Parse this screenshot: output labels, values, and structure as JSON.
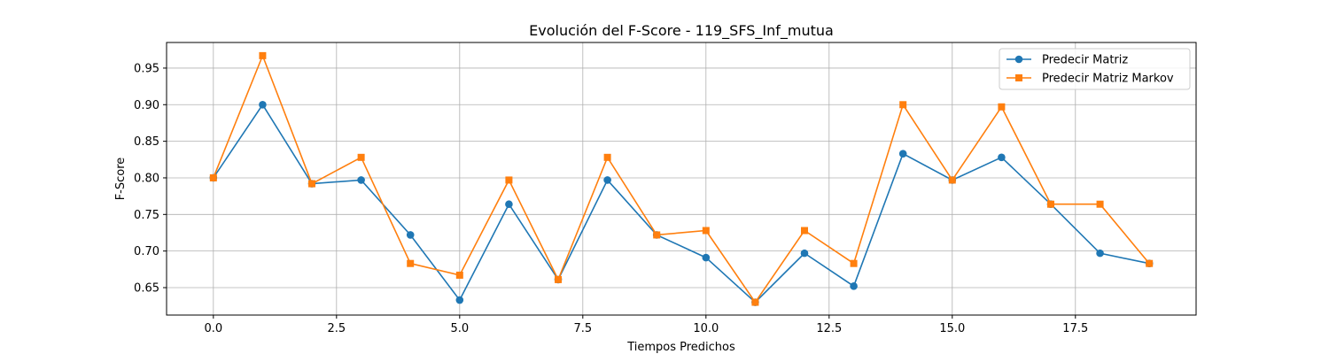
{
  "chart_data": {
    "type": "line",
    "title": "Evolución del F-Score - 119_SFS_Inf_mutua",
    "xlabel": "Tiempos Predichos",
    "ylabel": "F-Score",
    "xlim": [
      -0.95,
      19.95
    ],
    "ylim": [
      0.6125,
      0.985
    ],
    "xticks": [
      0.0,
      2.5,
      5.0,
      7.5,
      10.0,
      12.5,
      15.0,
      17.5
    ],
    "xtick_labels": [
      "0.0",
      "2.5",
      "5.0",
      "7.5",
      "10.0",
      "12.5",
      "15.0",
      "17.5"
    ],
    "yticks": [
      0.65,
      0.7,
      0.75,
      0.8,
      0.85,
      0.9,
      0.95
    ],
    "ytick_labels": [
      "0.65",
      "0.70",
      "0.75",
      "0.80",
      "0.85",
      "0.90",
      "0.95"
    ],
    "grid": true,
    "legend_position": "top-right",
    "x": [
      0,
      1,
      2,
      3,
      4,
      5,
      6,
      7,
      8,
      9,
      10,
      11,
      12,
      13,
      14,
      15,
      16,
      17,
      18,
      19
    ],
    "series": [
      {
        "name": "Predecir Matriz",
        "color": "#1f77b4",
        "marker": "circle",
        "values": [
          0.8,
          0.9,
          0.792,
          0.797,
          0.722,
          0.633,
          0.764,
          0.661,
          0.797,
          0.722,
          0.691,
          0.63,
          0.697,
          0.652,
          0.833,
          0.797,
          0.828,
          0.764,
          0.697,
          0.683
        ]
      },
      {
        "name": "Predecir Matriz Markov",
        "color": "#ff7f0e",
        "marker": "square",
        "values": [
          0.8,
          0.967,
          0.792,
          0.828,
          0.683,
          0.667,
          0.797,
          0.661,
          0.828,
          0.722,
          0.728,
          0.63,
          0.728,
          0.683,
          0.9,
          0.797,
          0.897,
          0.764,
          0.764,
          0.683
        ]
      }
    ]
  }
}
